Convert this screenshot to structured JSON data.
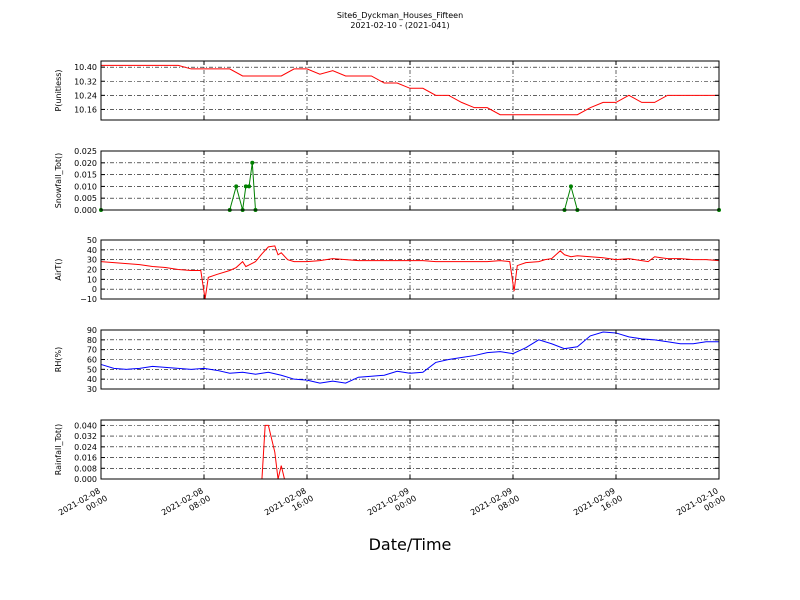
{
  "chart_data": [
    {
      "type": "line",
      "title": "Site6_Dyckman_Houses_Fifteen",
      "subtitle": "2021-02-10 - (2021-041)",
      "ylabel": "P(unitless)",
      "x": [
        "2021-02-08 00:00",
        "2021-02-08 01:00",
        "2021-02-08 02:00",
        "2021-02-08 03:00",
        "2021-02-08 04:00",
        "2021-02-08 05:00",
        "2021-02-08 06:00",
        "2021-02-08 07:00",
        "2021-02-08 08:00",
        "2021-02-08 09:00",
        "2021-02-08 10:00",
        "2021-02-08 11:00",
        "2021-02-08 12:00",
        "2021-02-08 13:00",
        "2021-02-08 14:00",
        "2021-02-08 15:00",
        "2021-02-08 16:00",
        "2021-02-08 17:00",
        "2021-02-08 18:00",
        "2021-02-08 19:00",
        "2021-02-08 20:00",
        "2021-02-08 21:00",
        "2021-02-08 22:00",
        "2021-02-08 23:00",
        "2021-02-09 00:00",
        "2021-02-09 01:00",
        "2021-02-09 02:00",
        "2021-02-09 03:00",
        "2021-02-09 04:00",
        "2021-02-09 05:00",
        "2021-02-09 06:00",
        "2021-02-09 07:00",
        "2021-02-09 08:00",
        "2021-02-09 09:00",
        "2021-02-09 10:00",
        "2021-02-09 11:00",
        "2021-02-09 12:00",
        "2021-02-09 13:00",
        "2021-02-09 14:00",
        "2021-02-09 15:00",
        "2021-02-09 16:00",
        "2021-02-09 17:00",
        "2021-02-09 18:00",
        "2021-02-09 19:00",
        "2021-02-09 20:00",
        "2021-02-09 21:00",
        "2021-02-09 22:00",
        "2021-02-09 23:00",
        "2021-02-10 00:00"
      ],
      "series": [
        {
          "color": "#ff0000",
          "values": [
            10.41,
            10.41,
            10.41,
            10.41,
            10.41,
            10.41,
            10.41,
            10.39,
            10.39,
            10.39,
            10.39,
            10.35,
            10.35,
            10.35,
            10.35,
            10.39,
            10.39,
            10.36,
            10.38,
            10.35,
            10.35,
            10.35,
            10.31,
            10.31,
            10.28,
            10.28,
            10.24,
            10.24,
            10.2,
            10.17,
            10.17,
            10.13,
            10.13,
            10.13,
            10.13,
            10.13,
            10.13,
            10.13,
            10.17,
            10.2,
            10.2,
            10.24,
            10.2,
            10.2,
            10.24,
            10.24,
            10.24,
            10.24,
            10.24
          ]
        }
      ],
      "xlim": [
        "2021-02-08 00:00",
        "2021-02-10 00:00"
      ],
      "xticks": [
        "2021-02-08 00:00",
        "2021-02-08 08:00",
        "2021-02-08 16:00",
        "2021-02-09 00:00",
        "2021-02-09 08:00",
        "2021-02-09 16:00",
        "2021-02-10 00:00"
      ],
      "ylim": [
        10.1,
        10.435
      ],
      "yticks": [
        10.16,
        10.24,
        10.32,
        {
          "value": 10.4,
          "label": "10.40"
        }
      ],
      "grid": true
    },
    {
      "type": "line",
      "ylabel": "Snowfall_Tot()",
      "markers": true,
      "x": [
        "2021-02-08 00:00",
        "2021-02-08 10:00",
        "2021-02-08 10:30",
        "2021-02-08 11:00",
        "2021-02-08 11:15",
        "2021-02-08 11:30",
        "2021-02-08 11:45",
        "2021-02-08 12:00",
        "2021-02-09 12:00",
        "2021-02-09 12:30",
        "2021-02-09 13:00",
        "2021-02-10 00:00"
      ],
      "series": [
        {
          "color": "#008000",
          "values": [
            0,
            0,
            0.01,
            0,
            0.01,
            0.01,
            0.02,
            0,
            0,
            0.01,
            0,
            0
          ]
        }
      ],
      "xlim": [
        "2021-02-08 00:00",
        "2021-02-10 00:00"
      ],
      "xticks": [
        "2021-02-08 00:00",
        "2021-02-08 08:00",
        "2021-02-08 16:00",
        "2021-02-09 00:00",
        "2021-02-09 08:00",
        "2021-02-09 16:00",
        "2021-02-10 00:00"
      ],
      "ylim": [
        0,
        0.025
      ],
      "yticks": [
        {
          "value": 0,
          "label": "0.000"
        },
        {
          "value": 0.005,
          "label": "0.005"
        },
        {
          "value": 0.01,
          "label": "0.010"
        },
        {
          "value": 0.015,
          "label": "0.015"
        },
        {
          "value": 0.02,
          "label": "0.020"
        },
        {
          "value": 0.025,
          "label": "0.025"
        }
      ],
      "grid": true
    },
    {
      "type": "line",
      "ylabel": "AirT()",
      "x": [
        "2021-02-08 00:00",
        "2021-02-08 01:00",
        "2021-02-08 02:00",
        "2021-02-08 03:00",
        "2021-02-08 04:00",
        "2021-02-08 05:00",
        "2021-02-08 06:00",
        "2021-02-08 07:00",
        "2021-02-08 07:45",
        "2021-02-08 08:05",
        "2021-02-08 08:20",
        "2021-02-08 09:00",
        "2021-02-08 10:00",
        "2021-02-08 10:30",
        "2021-02-08 11:00",
        "2021-02-08 11:15",
        "2021-02-08 12:00",
        "2021-02-08 12:30",
        "2021-02-08 13:00",
        "2021-02-08 13:30",
        "2021-02-08 13:45",
        "2021-02-08 14:00",
        "2021-02-08 14:30",
        "2021-02-08 15:00",
        "2021-02-08 16:00",
        "2021-02-08 17:00",
        "2021-02-08 18:00",
        "2021-02-08 19:00",
        "2021-02-08 20:00",
        "2021-02-08 21:00",
        "2021-02-08 22:00",
        "2021-02-08 23:00",
        "2021-02-09 00:00",
        "2021-02-09 01:00",
        "2021-02-09 02:00",
        "2021-02-09 03:00",
        "2021-02-09 04:00",
        "2021-02-09 05:00",
        "2021-02-09 06:00",
        "2021-02-09 07:00",
        "2021-02-09 07:45",
        "2021-02-09 08:05",
        "2021-02-09 08:20",
        "2021-02-09 09:00",
        "2021-02-09 10:00",
        "2021-02-09 10:30",
        "2021-02-09 11:00",
        "2021-02-09 11:40",
        "2021-02-09 12:00",
        "2021-02-09 12:30",
        "2021-02-09 13:00",
        "2021-02-09 14:00",
        "2021-02-09 15:00",
        "2021-02-09 16:00",
        "2021-02-09 17:00",
        "2021-02-09 18:00",
        "2021-02-09 18:30",
        "2021-02-09 19:00",
        "2021-02-09 19:30",
        "2021-02-09 20:00",
        "2021-02-09 21:00",
        "2021-02-09 22:00",
        "2021-02-09 23:00",
        "2021-02-10 00:00"
      ],
      "series": [
        {
          "color": "#ff0000",
          "values": [
            28,
            27,
            26,
            25,
            23,
            22,
            20,
            19,
            19,
            -10,
            12,
            15,
            19,
            22,
            28,
            23,
            28,
            36,
            43,
            44,
            35,
            37,
            30,
            28,
            28,
            29,
            31,
            30,
            29,
            29,
            29,
            29,
            29,
            29,
            28,
            28,
            28,
            28,
            28,
            29,
            28,
            -2,
            24,
            27,
            28,
            30,
            31,
            39,
            35,
            33,
            34,
            33,
            32,
            30,
            31,
            29,
            28,
            33,
            32,
            31,
            31,
            30,
            30,
            29
          ]
        }
      ],
      "xlim": [
        "2021-02-08 00:00",
        "2021-02-10 00:00"
      ],
      "xticks": [
        "2021-02-08 00:00",
        "2021-02-08 08:00",
        "2021-02-08 16:00",
        "2021-02-09 00:00",
        "2021-02-09 08:00",
        "2021-02-09 16:00",
        "2021-02-10 00:00"
      ],
      "ylim": [
        -10,
        50
      ],
      "yticks": [
        {
          "value": -10,
          "label": "−10"
        },
        0,
        10,
        20,
        30,
        40,
        50
      ],
      "grid": true
    },
    {
      "type": "line",
      "ylabel": "RH(%)",
      "x": [
        "2021-02-08 00:00",
        "2021-02-08 01:00",
        "2021-02-08 02:00",
        "2021-02-08 03:00",
        "2021-02-08 04:00",
        "2021-02-08 05:00",
        "2021-02-08 06:00",
        "2021-02-08 07:00",
        "2021-02-08 08:00",
        "2021-02-08 09:00",
        "2021-02-08 10:00",
        "2021-02-08 11:00",
        "2021-02-08 12:00",
        "2021-02-08 13:00",
        "2021-02-08 14:00",
        "2021-02-08 15:00",
        "2021-02-08 16:00",
        "2021-02-08 17:00",
        "2021-02-08 18:00",
        "2021-02-08 19:00",
        "2021-02-08 20:00",
        "2021-02-08 21:00",
        "2021-02-08 22:00",
        "2021-02-08 23:00",
        "2021-02-09 00:00",
        "2021-02-09 01:00",
        "2021-02-09 02:00",
        "2021-02-09 03:00",
        "2021-02-09 04:00",
        "2021-02-09 05:00",
        "2021-02-09 06:00",
        "2021-02-09 07:00",
        "2021-02-09 08:00",
        "2021-02-09 09:00",
        "2021-02-09 10:00",
        "2021-02-09 11:00",
        "2021-02-09 12:00",
        "2021-02-09 13:00",
        "2021-02-09 14:00",
        "2021-02-09 15:00",
        "2021-02-09 16:00",
        "2021-02-09 17:00",
        "2021-02-09 18:00",
        "2021-02-09 19:00",
        "2021-02-09 20:00",
        "2021-02-09 21:00",
        "2021-02-09 22:00",
        "2021-02-09 23:00",
        "2021-02-10 00:00"
      ],
      "series": [
        {
          "color": "#0000ff",
          "values": [
            55,
            51,
            50,
            51,
            53,
            52,
            51,
            50,
            51,
            49,
            46,
            47,
            45,
            47,
            44,
            40,
            39,
            36,
            38,
            36,
            42,
            43,
            44,
            48,
            46,
            47,
            57,
            60,
            62,
            64,
            67,
            68,
            66,
            72,
            80,
            76,
            71,
            73,
            84,
            88,
            87,
            83,
            81,
            80,
            78,
            76,
            76,
            78,
            78
          ]
        }
      ],
      "xlim": [
        "2021-02-08 00:00",
        "2021-02-10 00:00"
      ],
      "xticks": [
        "2021-02-08 00:00",
        "2021-02-08 08:00",
        "2021-02-08 16:00",
        "2021-02-09 00:00",
        "2021-02-09 08:00",
        "2021-02-09 16:00",
        "2021-02-10 00:00"
      ],
      "ylim": [
        30,
        90
      ],
      "yticks": [
        30,
        40,
        50,
        60,
        70,
        80,
        90
      ],
      "grid": true
    },
    {
      "type": "line",
      "ylabel": "Rainfall_Tot()",
      "xlabel": "Date/Time",
      "x": [
        "2021-02-08 00:00",
        "2021-02-08 12:30",
        "2021-02-08 12:45",
        "2021-02-08 13:00",
        "2021-02-08 13:30",
        "2021-02-08 13:45",
        "2021-02-08 14:00",
        "2021-02-08 14:15",
        "2021-02-10 00:00"
      ],
      "series": [
        {
          "color": "#ff0000",
          "values": [
            0,
            0,
            0.04,
            0.04,
            0.02,
            0,
            0.01,
            0,
            0
          ]
        }
      ],
      "xlim": [
        "2021-02-08 00:00",
        "2021-02-10 00:00"
      ],
      "xticks": [
        "2021-02-08 00:00",
        "2021-02-08 08:00",
        "2021-02-08 16:00",
        "2021-02-09 00:00",
        "2021-02-09 08:00",
        "2021-02-09 16:00",
        "2021-02-10 00:00"
      ],
      "ylim": [
        0,
        0.044
      ],
      "yticks": [
        {
          "value": 0,
          "label": "0.000"
        },
        {
          "value": 0.008,
          "label": "0.008"
        },
        {
          "value": 0.016,
          "label": "0.016"
        },
        {
          "value": 0.024,
          "label": "0.024"
        },
        {
          "value": 0.032,
          "label": "0.032"
        },
        {
          "value": 0.04,
          "label": "0.040"
        }
      ],
      "grid": true
    }
  ]
}
